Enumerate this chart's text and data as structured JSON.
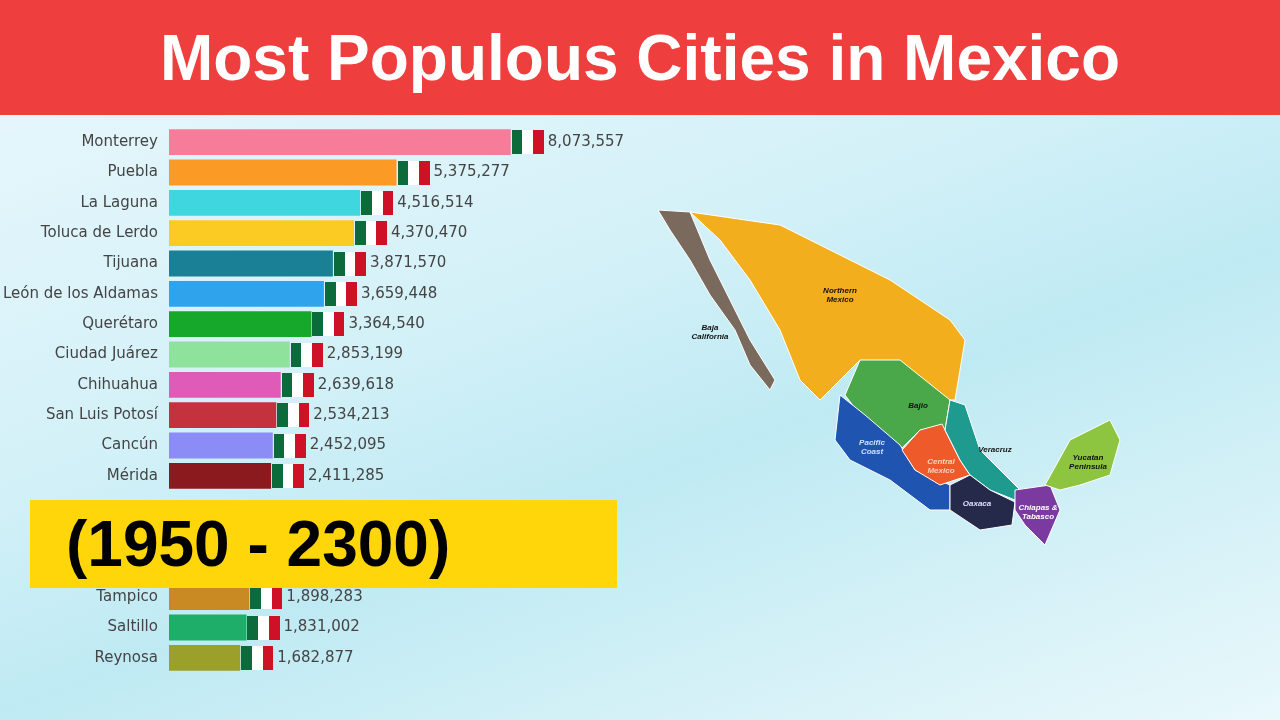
{
  "chart_data": {
    "type": "bar",
    "orientation": "horizontal",
    "title": "Most Populous Cities in Mexico",
    "subtitle": "(1950 - 2300)",
    "categories": [
      "Monterrey",
      "Puebla",
      "La Laguna",
      "Toluca de Lerdo",
      "Tijuana",
      "León de los Aldamas",
      "Querétaro",
      "Ciudad Juárez",
      "Chihuahua",
      "San Luis Potosí",
      "Cancún",
      "Mérida",
      null,
      null,
      null,
      "Tampico",
      "Saltillo",
      "Reynosa"
    ],
    "values": [
      8073557,
      5375277,
      4516514,
      4370470,
      3871570,
      3659448,
      3364540,
      2853199,
      2639618,
      2534213,
      2452095,
      2411285,
      null,
      null,
      null,
      1898283,
      1831002,
      1682877
    ],
    "colors": [
      "#f77c9a",
      "#fb9a24",
      "#3fd6e0",
      "#fbcb23",
      "#1a8095",
      "#2fa3eb",
      "#16a82a",
      "#8ee29b",
      "#e05ab8",
      "#c4333d",
      "#8c8cf7",
      "#8b1a1f",
      "#2fa3eb",
      "#999999",
      "#999999",
      "#c98a23",
      "#1fae69",
      "#9aa02a"
    ],
    "data_labels": true,
    "value_labels": [
      "8,073,557",
      "5,375,277",
      "4,516,514",
      "4,370,470",
      "3,871,570",
      "3,659,448",
      "3,364,540",
      "2,853,199",
      "2,639,618",
      "2,534,213",
      "2,452,095",
      "2,411,285",
      null,
      null,
      null,
      "1,898,283",
      "1,831,002",
      "1,682,877"
    ],
    "annotations": [
      "Northern Mexico",
      "Baja California",
      "Bajio",
      "Veracruz",
      "Pacific Coast",
      "Central Mexico",
      "Oaxaca",
      "Yucatan Peninsula",
      "Chiapas & Tabasco"
    ]
  }
}
